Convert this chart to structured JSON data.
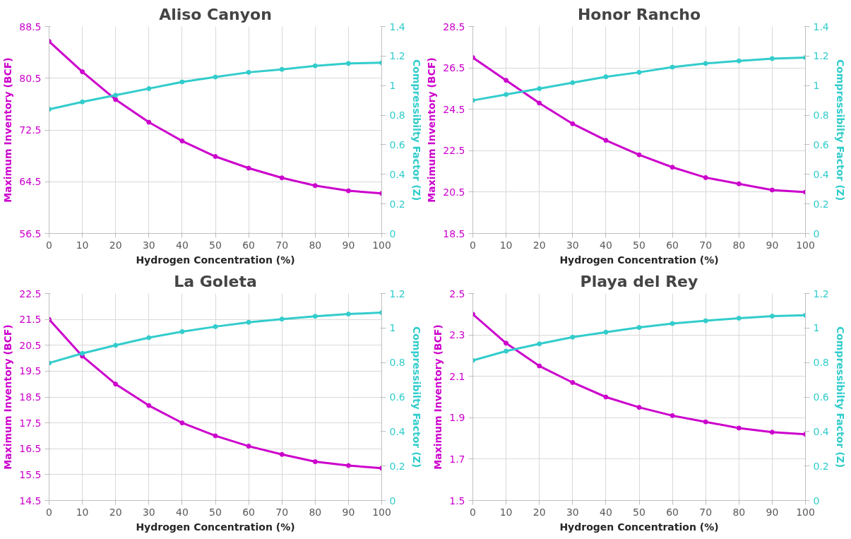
{
  "chart_data": [
    {
      "type": "line",
      "title": "Aliso Canyon",
      "xlabel": "Hydrogen Concentration (%)",
      "ylabel": "Maximum Inventory (BCF)",
      "y2label": "Compressibilty Factor (Z)",
      "x": [
        0,
        10,
        20,
        30,
        40,
        50,
        60,
        70,
        80,
        90,
        100
      ],
      "xlim": [
        0,
        100
      ],
      "xticks": [
        0,
        10,
        20,
        30,
        40,
        50,
        60,
        70,
        80,
        90,
        100
      ],
      "ylim": [
        56.5,
        88.5
      ],
      "yticks": [
        56.5,
        64.5,
        72.5,
        80.5,
        88.5
      ],
      "y2lim": [
        0,
        1.4
      ],
      "y2ticks": [
        0,
        0.2,
        0.4,
        0.6,
        0.8,
        1,
        1.2,
        1.4
      ],
      "grid": true,
      "marker": "circle",
      "series": [
        {
          "color": "#cc00cc",
          "values": [
            86.2,
            81.5,
            77.2,
            73.7,
            70.8,
            68.4,
            66.6,
            65.1,
            63.9,
            63.1,
            62.7
          ]
        },
        {
          "color": "#33cccc",
          "axis": "y2",
          "values": [
            0.84,
            0.89,
            0.935,
            0.98,
            1.025,
            1.058,
            1.09,
            1.11,
            1.134,
            1.15,
            1.155
          ]
        }
      ]
    },
    {
      "type": "line",
      "title": "Honor Rancho",
      "xlabel": "Hydrogen Concentration (%)",
      "ylabel": "Maximum Inventory (BCF)",
      "y2label": "Compressibilty Factor (Z)",
      "x": [
        0,
        10,
        20,
        30,
        40,
        50,
        60,
        70,
        80,
        90,
        100
      ],
      "xlim": [
        0,
        100
      ],
      "xticks": [
        0,
        10,
        20,
        30,
        40,
        50,
        60,
        70,
        80,
        90,
        100
      ],
      "ylim": [
        18.5,
        28.5
      ],
      "yticks": [
        18.5,
        20.5,
        22.5,
        24.5,
        26.5,
        28.5
      ],
      "y2lim": [
        0,
        1.4
      ],
      "y2ticks": [
        0,
        0.2,
        0.4,
        0.6,
        0.8,
        1,
        1.2,
        1.4
      ],
      "grid": true,
      "marker": "circle",
      "series": [
        {
          "color": "#cc00cc",
          "values": [
            27.0,
            25.9,
            24.8,
            23.8,
            23.0,
            22.3,
            21.7,
            21.2,
            20.9,
            20.6,
            20.5
          ]
        },
        {
          "color": "#33cccc",
          "axis": "y2",
          "values": [
            0.9,
            0.94,
            0.98,
            1.02,
            1.06,
            1.09,
            1.125,
            1.15,
            1.167,
            1.183,
            1.19
          ]
        }
      ]
    },
    {
      "type": "line",
      "title": "La Goleta",
      "xlabel": "Hydrogen Concentration (%)",
      "ylabel": "Maximum Inventory (BCF)",
      "y2label": "Compressibilty Factor (Z)",
      "x": [
        0,
        10,
        20,
        30,
        40,
        50,
        60,
        70,
        80,
        90,
        100
      ],
      "xlim": [
        0,
        100
      ],
      "xticks": [
        0,
        10,
        20,
        30,
        40,
        50,
        60,
        70,
        80,
        90,
        100
      ],
      "ylim": [
        14.5,
        22.5
      ],
      "yticks": [
        14.5,
        15.5,
        16.5,
        17.5,
        18.5,
        19.5,
        20.5,
        21.5,
        22.5
      ],
      "y2lim": [
        0,
        1.2
      ],
      "y2ticks": [
        0,
        0.2,
        0.4,
        0.6,
        0.8,
        1,
        1.2
      ],
      "grid": true,
      "marker": "circle",
      "series": [
        {
          "color": "#cc00cc",
          "values": [
            21.5,
            20.08,
            19.0,
            18.17,
            17.5,
            17.0,
            16.6,
            16.28,
            16.0,
            15.85,
            15.75
          ]
        },
        {
          "color": "#33cccc",
          "axis": "y2",
          "values": [
            0.797,
            0.853,
            0.9,
            0.944,
            0.979,
            1.008,
            1.033,
            1.052,
            1.068,
            1.081,
            1.089
          ]
        }
      ]
    },
    {
      "type": "line",
      "title": "Playa del Rey",
      "xlabel": "Hydrogen Concentration (%)",
      "ylabel": "Maximum Inventory (BCF)",
      "y2label": "Compressibilty Factor (Z)",
      "x": [
        0,
        10,
        20,
        30,
        40,
        50,
        60,
        70,
        80,
        90,
        100
      ],
      "xlim": [
        0,
        100
      ],
      "xticks": [
        0,
        10,
        20,
        30,
        40,
        50,
        60,
        70,
        80,
        90,
        100
      ],
      "ylim": [
        1.5,
        2.5
      ],
      "yticks": [
        1.5,
        1.7,
        1.9,
        2.1,
        2.3,
        2.5
      ],
      "y2lim": [
        0,
        1.2
      ],
      "y2ticks": [
        0,
        0.2,
        0.4,
        0.6,
        0.8,
        1,
        1.2
      ],
      "grid": true,
      "marker": "circle",
      "series": [
        {
          "color": "#cc00cc",
          "values": [
            2.4,
            2.26,
            2.15,
            2.07,
            2.0,
            1.95,
            1.91,
            1.88,
            1.85,
            1.83,
            1.82
          ]
        },
        {
          "color": "#33cccc",
          "axis": "y2",
          "values": [
            0.812,
            0.866,
            0.908,
            0.947,
            0.976,
            1.003,
            1.026,
            1.042,
            1.057,
            1.069,
            1.074
          ]
        }
      ]
    }
  ]
}
